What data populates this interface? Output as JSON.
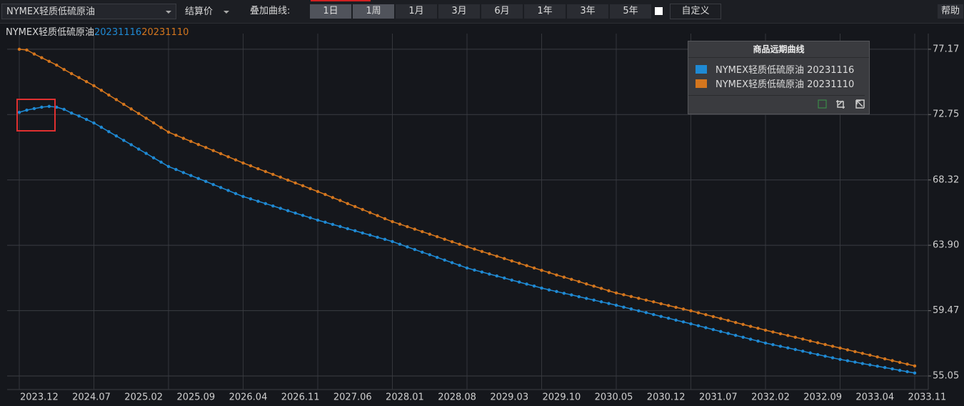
{
  "toolbar": {
    "instrument": "NYMEX轻质低硫原油",
    "price_type": "结算价",
    "overlay_label": "叠加曲线:",
    "periods": [
      "1日",
      "1周",
      "1月",
      "3月",
      "6月",
      "1年",
      "3年",
      "5年"
    ],
    "custom": "自定义",
    "help": "帮助"
  },
  "chart_data": {
    "type": "line",
    "title": "NYMEX轻质低硫原油",
    "title_dates": [
      "20231116",
      "20231110"
    ],
    "legend_title": "商品远期曲线",
    "legend": "upper right",
    "grid": true,
    "categories": [
      "2023.12",
      null,
      null,
      null,
      null,
      null,
      null,
      "2024.07",
      null,
      null,
      null,
      null,
      null,
      null,
      "2025.02",
      null,
      null,
      null,
      null,
      null,
      null,
      "2025.09",
      null,
      null,
      null,
      null,
      null,
      null,
      "2026.04",
      null,
      null,
      null,
      null,
      null,
      null,
      "2026.11",
      null,
      null,
      null,
      null,
      null,
      null,
      "2027.06",
      null,
      null,
      null,
      null,
      null,
      null,
      "2028.01",
      null,
      null,
      null,
      null,
      null,
      null,
      "2028.08",
      null,
      null,
      null,
      null,
      null,
      null,
      "2029.03",
      null,
      null,
      null,
      null,
      null,
      null,
      "2029.10",
      null,
      null,
      null,
      null,
      null,
      null,
      "2030.05",
      null,
      null,
      null,
      null,
      null,
      null,
      "2030.12",
      null,
      null,
      null,
      null,
      null,
      null,
      "2031.07",
      null,
      null,
      null,
      null,
      null,
      null,
      "2032.02",
      null,
      null,
      null,
      null,
      null,
      null,
      "2032.09",
      null,
      null,
      null,
      null,
      null,
      null,
      "2033.04",
      null,
      null,
      null,
      null,
      null,
      null,
      "2033.11",
      null
    ],
    "ylim": [
      54.13,
      78.23
    ],
    "yticks": [
      55.05,
      59.47,
      {
        "value": 63.9,
        "label": "63.90"
      },
      68.32,
      72.75,
      77.17
    ],
    "series": [
      {
        "name": "NYMEX轻质低硫原油 20231116",
        "color": "#1f8ad4",
        "values": [
          72.9,
          73.05,
          73.15,
          73.25,
          73.3,
          73.25,
          73.1,
          72.85,
          72.65,
          72.42,
          72.18,
          71.89,
          71.59,
          71.3,
          71.0,
          70.71,
          70.41,
          70.12,
          69.82,
          69.53,
          69.23,
          69.03,
          68.82,
          68.62,
          68.42,
          68.22,
          68.01,
          67.81,
          67.61,
          67.4,
          67.2,
          67.04,
          66.88,
          66.72,
          66.56,
          66.4,
          66.24,
          66.08,
          65.92,
          65.76,
          65.6,
          65.46,
          65.31,
          65.17,
          65.02,
          64.88,
          64.73,
          64.59,
          64.44,
          64.3,
          64.15,
          63.97,
          63.79,
          63.61,
          63.43,
          63.26,
          63.08,
          62.9,
          62.72,
          62.54,
          62.36,
          62.22,
          62.09,
          61.95,
          61.82,
          61.68,
          61.54,
          61.41,
          61.27,
          61.14,
          61.0,
          60.88,
          60.77,
          60.65,
          60.54,
          60.42,
          60.3,
          60.19,
          60.07,
          59.96,
          59.84,
          59.71,
          59.59,
          59.46,
          59.34,
          59.21,
          59.08,
          58.96,
          58.83,
          58.71,
          58.58,
          58.45,
          58.32,
          58.19,
          58.06,
          57.93,
          57.8,
          57.67,
          57.54,
          57.41,
          57.28,
          57.17,
          57.06,
          56.95,
          56.84,
          56.73,
          56.61,
          56.5,
          56.39,
          56.28,
          56.17,
          56.08,
          55.99,
          55.89,
          55.8,
          55.71,
          55.62,
          55.53,
          55.43,
          55.34,
          55.25
        ]
      },
      {
        "name": "NYMEX轻质低硫原油 20231110",
        "color": "#d4761e",
        "values": [
          77.17,
          77.12,
          76.85,
          76.6,
          76.35,
          76.1,
          75.8,
          75.52,
          75.25,
          74.98,
          74.7,
          74.39,
          74.07,
          73.76,
          73.44,
          73.13,
          72.82,
          72.5,
          72.19,
          71.87,
          71.56,
          71.35,
          71.14,
          70.93,
          70.72,
          70.52,
          70.31,
          70.1,
          69.89,
          69.68,
          69.47,
          69.28,
          69.08,
          68.89,
          68.7,
          68.51,
          68.31,
          68.12,
          67.93,
          67.73,
          67.54,
          67.34,
          67.13,
          66.93,
          66.72,
          66.52,
          66.32,
          66.11,
          65.91,
          65.7,
          65.5,
          65.33,
          65.16,
          64.99,
          64.82,
          64.65,
          64.48,
          64.31,
          64.14,
          63.97,
          63.8,
          63.64,
          63.48,
          63.32,
          63.16,
          63.0,
          62.84,
          62.68,
          62.52,
          62.36,
          62.2,
          62.05,
          61.89,
          61.74,
          61.59,
          61.44,
          61.28,
          61.13,
          60.98,
          60.82,
          60.67,
          60.55,
          60.43,
          60.31,
          60.19,
          60.07,
          59.94,
          59.82,
          59.7,
          59.58,
          59.46,
          59.33,
          59.2,
          59.07,
          58.94,
          58.81,
          58.67,
          58.54,
          58.41,
          58.28,
          58.15,
          58.03,
          57.91,
          57.79,
          57.67,
          57.55,
          57.42,
          57.3,
          57.18,
          57.06,
          56.94,
          56.82,
          56.7,
          56.58,
          56.46,
          56.34,
          56.21,
          56.09,
          55.97,
          55.85,
          55.73
        ]
      }
    ]
  }
}
